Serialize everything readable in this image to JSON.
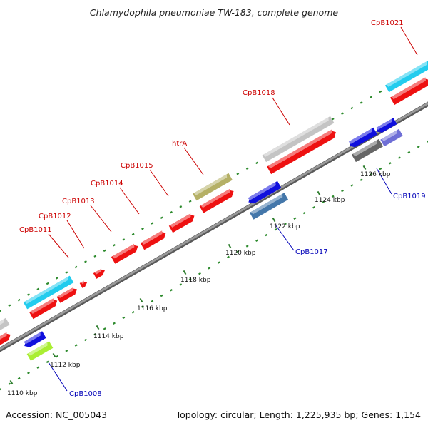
{
  "title": "Chlamydophila pneumoniae TW-183, complete genome",
  "footer": {
    "accession": "Accession: NC_005043",
    "summary": "Topology: circular; Length: 1,225,935 bp; Genes: 1,154"
  },
  "colors": {
    "backbone": "#8c8c8c",
    "minor_tick": "#2e8b2e",
    "red_label": "#cc0000",
    "blue_label": "#0000b8",
    "red_gene": "#ee1111",
    "cyan_gene": "#22ccee",
    "olive_gene": "#b5b066",
    "grey_gene": "#c4c4c4",
    "blue_gene": "#1010dd",
    "steel_gene": "#4477aa",
    "lime_gene": "#aaee33",
    "dark_grey_gene": "#666666",
    "slate_gene": "#6f6fd6"
  },
  "tick_labels": [
    "1110 kbp",
    "1112 kbp",
    "1114 kbp",
    "1116 kbp",
    "1118 kbp",
    "1120 kbp",
    "1122 kbp",
    "1124 kbp",
    "1126 kbp"
  ],
  "gene_labels": [
    {
      "text": "CpB1011",
      "color": "red"
    },
    {
      "text": "CpB1012",
      "color": "red"
    },
    {
      "text": "CpB1013",
      "color": "red"
    },
    {
      "text": "CpB1014",
      "color": "red"
    },
    {
      "text": "CpB1015",
      "color": "red"
    },
    {
      "text": "htrA",
      "color": "red"
    },
    {
      "text": "CpB1018",
      "color": "red"
    },
    {
      "text": "CpB1021",
      "color": "red"
    },
    {
      "text": "CpB1008",
      "color": "blue"
    },
    {
      "text": "CpB1017",
      "color": "blue"
    },
    {
      "text": "CpB1019",
      "color": "blue"
    }
  ]
}
